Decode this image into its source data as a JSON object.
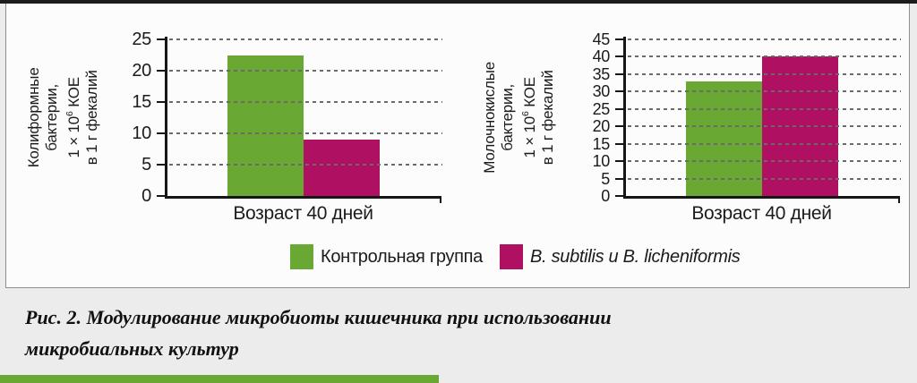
{
  "figure": {
    "caption_line1": "Рис. 2. Модулирование микробиоты кишечника при использовании",
    "caption_line2": "микробиальных культур"
  },
  "palette": {
    "control_green": "#69a832",
    "probiotic_crimson": "#b01062",
    "page_background": "#ececec",
    "panel_background": "#fcfcfc",
    "accent_bar": "#69a832"
  },
  "legend": {
    "items": [
      {
        "label": "Контрольная группа",
        "color": "#69a832",
        "italic": false
      },
      {
        "label": "B. subtilis и B. licheniformis",
        "color": "#b01062",
        "italic": true
      }
    ]
  },
  "chart_data": [
    {
      "type": "bar",
      "title": "",
      "ylabel_lines": [
        "Колиформные",
        "бактерии,",
        {
          "pre": "1 × 10",
          "sup": "6",
          "post": " КОЕ"
        },
        "в 1 г фекалий"
      ],
      "xlabel": "Возраст 40 дней",
      "categories": [
        "Возраст 40 дней"
      ],
      "ylim": [
        0,
        25
      ],
      "yticks": [
        0,
        5,
        10,
        15,
        20,
        25
      ],
      "grid": "dashed-horizontal",
      "legend_position": "below-shared",
      "series": [
        {
          "name": "Контрольная группа",
          "value": 22.5,
          "color": "#69a832"
        },
        {
          "name": "B. subtilis и B. licheniformis",
          "value": 9,
          "color": "#b01062"
        }
      ]
    },
    {
      "type": "bar",
      "title": "",
      "ylabel_lines": [
        "Молочнокислые",
        "бактерии,",
        {
          "pre": "1 × 10",
          "sup": "6",
          "post": " КОЕ"
        },
        "в 1 г фекалий"
      ],
      "xlabel": "Возраст 40 дней",
      "categories": [
        "Возраст 40 дней"
      ],
      "ylim": [
        0,
        45
      ],
      "yticks": [
        0,
        5,
        10,
        15,
        20,
        25,
        30,
        35,
        40,
        45
      ],
      "grid": "dashed-horizontal",
      "legend_position": "below-shared",
      "series": [
        {
          "name": "Контрольная группа",
          "value": 33,
          "color": "#69a832"
        },
        {
          "name": "B. subtilis и B. licheniformis",
          "value": 40,
          "color": "#b01062"
        }
      ]
    }
  ]
}
